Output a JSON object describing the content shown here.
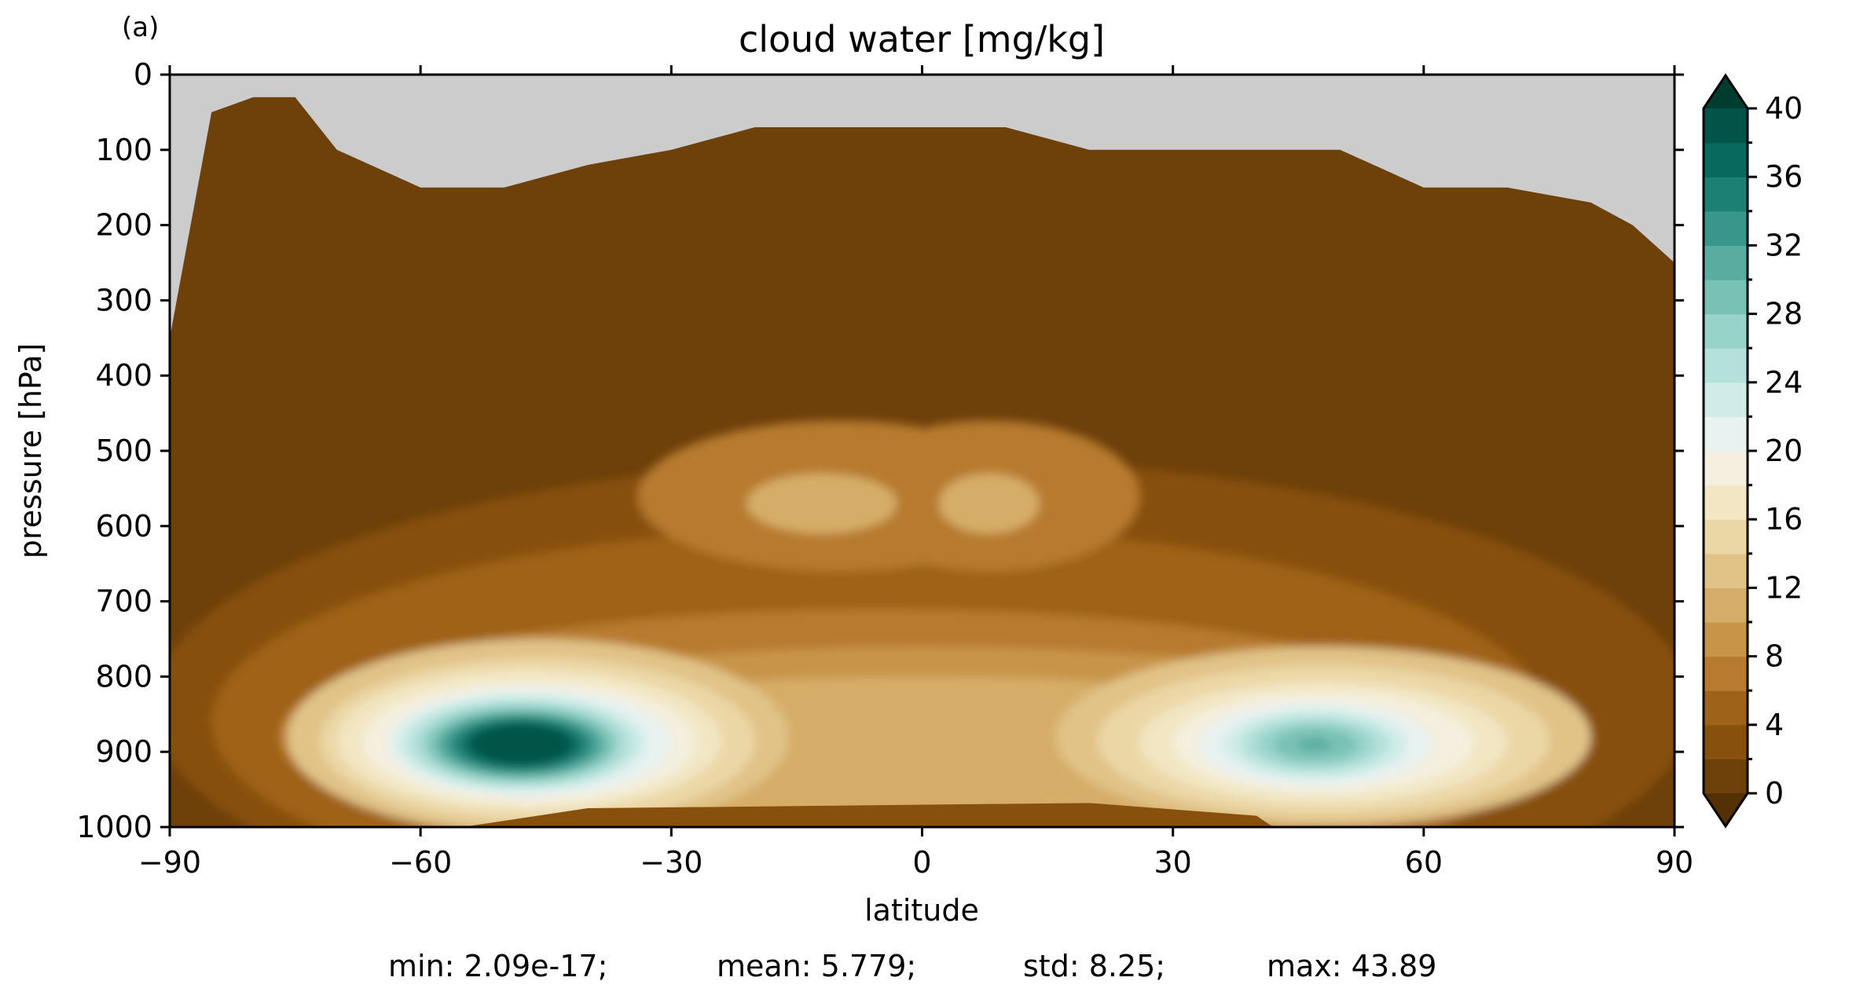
{
  "chart_data": {
    "type": "heatmap",
    "panel_label": "(a)",
    "title": "cloud water [mg/kg]",
    "xlabel": "latitude",
    "ylabel": "pressure [hPa]",
    "xlim": [
      -90,
      90
    ],
    "ylim": [
      1000,
      0
    ],
    "x_ticks": [
      -90,
      -60,
      -30,
      0,
      30,
      60,
      90
    ],
    "x_tick_labels": [
      "−90",
      "−60",
      "−30",
      "0",
      "30",
      "60",
      "90"
    ],
    "y_ticks": [
      0,
      100,
      200,
      300,
      400,
      500,
      600,
      700,
      800,
      900,
      1000
    ],
    "y_tick_labels": [
      "0",
      "100",
      "200",
      "300",
      "400",
      "500",
      "600",
      "700",
      "800",
      "900",
      "1000"
    ],
    "missing_color": "#cccccc",
    "colorbar": {
      "levels": [
        0,
        2,
        4,
        6,
        8,
        10,
        12,
        14,
        16,
        18,
        20,
        22,
        24,
        26,
        28,
        30,
        32,
        34,
        36,
        38,
        40
      ],
      "tick_values": [
        0,
        4,
        8,
        12,
        16,
        20,
        24,
        28,
        32,
        36,
        40
      ],
      "tick_labels": [
        "0",
        "4",
        "8",
        "12",
        "16",
        "20",
        "24",
        "28",
        "32",
        "36",
        "40"
      ],
      "colors": [
        "#6e400a",
        "#87500c",
        "#9f6219",
        "#b77a2e",
        "#c89448",
        "#d6ad68",
        "#e1c388",
        "#ebd7a6",
        "#f2e6c3",
        "#f4efde",
        "#e8f2f0",
        "#d0ece8",
        "#b4e1da",
        "#97d3c9",
        "#7ac1b5",
        "#58aca0",
        "#39968a",
        "#1d8074",
        "#086a5f",
        "#025448"
      ],
      "under_color": "#543005",
      "over_color": "#003c30"
    },
    "stats": {
      "min_label": "min: 2.09e-17;",
      "mean_label": "mean: 5.779;",
      "std_label": "std: 8.25;",
      "max_label": "max: 43.89"
    },
    "data_top_pressure_by_latitude": {
      "latitude": [
        -90,
        -85,
        -80,
        -75,
        -70,
        -60,
        -50,
        -40,
        -30,
        -20,
        -10,
        0,
        10,
        20,
        30,
        40,
        50,
        60,
        70,
        80,
        85,
        90
      ],
      "pressure": [
        350,
        50,
        30,
        30,
        100,
        150,
        150,
        120,
        100,
        70,
        70,
        70,
        70,
        100,
        100,
        100,
        100,
        150,
        150,
        170,
        200,
        250
      ]
    },
    "features": [
      {
        "label": "southern low-level maximum",
        "lat": -48,
        "p": 890,
        "value": 43.89
      },
      {
        "label": "northern low-level maximum",
        "lat": 47,
        "p": 890,
        "value": 30
      },
      {
        "label": "tropical mid-level maximum",
        "lat": -12,
        "p": 570,
        "value": 10
      },
      {
        "label": "tropical mid-level maximum",
        "lat": 8,
        "p": 570,
        "value": 10
      }
    ]
  }
}
